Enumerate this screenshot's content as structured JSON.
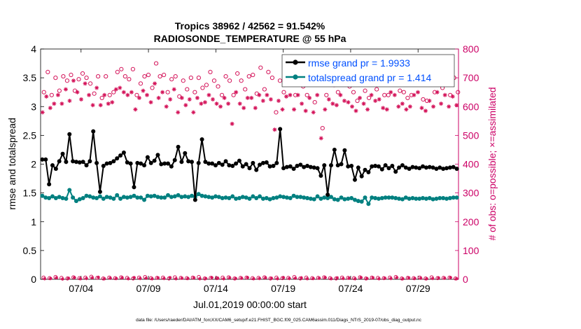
{
  "chart_data": {
    "type": "line",
    "title_line1": "Tropics 38962 / 42562 = 91.542%",
    "title_line2": "RADIOSONDE_TEMPERATURE @ 55 hPa",
    "xlabel": "Jul.01,2019 00:00:00 start",
    "ylabel_left": "rmse and totalspread",
    "ylabel_right": "# of obs: o=possible; ×=assimilated",
    "footer": "data file: /Users/raeder/DAI/ATM_forcXX/CAM6_setup/f.e21.FHIST_BGC.f09_025.CAM6assim.011/Diags_NTrS_2019-07/obs_diag_output.nc",
    "x_range_days": [
      1.0,
      32.0
    ],
    "x_ticks": [
      {
        "day": 4,
        "label": "07/04"
      },
      {
        "day": 9,
        "label": "07/09"
      },
      {
        "day": 14,
        "label": "07/14"
      },
      {
        "day": 19,
        "label": "07/19"
      },
      {
        "day": 24,
        "label": "07/24"
      },
      {
        "day": 29,
        "label": "07/29"
      }
    ],
    "ylim_left": [
      0,
      4
    ],
    "yticks_left": [
      "0",
      "0.5",
      "1",
      "1.5",
      "2",
      "2.5",
      "3",
      "3.5",
      "4"
    ],
    "ylim_right": [
      0,
      800
    ],
    "yticks_right": [
      "0",
      "100",
      "200",
      "300",
      "400",
      "500",
      "600",
      "700",
      "800"
    ],
    "grid": false,
    "legend_position": "top-right",
    "colors": {
      "rmse": "#000000",
      "totalspread": "#008080",
      "obs": "#d4145a",
      "legend_text": "#0050ff",
      "right_axis": "#cc0066"
    },
    "series": [
      {
        "name": "rmse grand pr = 1.9933",
        "values": [
          2.08,
          2.08,
          1.65,
          1.98,
          1.92,
          2.05,
          2.18,
          2.04,
          2.52,
          2.05,
          2.04,
          2.03,
          2.04,
          1.98,
          2.05,
          2.57,
          2.02,
          1.52,
          1.97,
          2.01,
          2.02,
          2.05,
          2.1,
          2.15,
          2.2,
          2.03,
          2.01,
          1.6,
          2.02,
          2.01,
          1.98,
          2.12,
          2.02,
          2.06,
          2.16,
          2.0,
          2.01,
          2.01,
          1.96,
          2.07,
          2.3,
          2.04,
          2.19,
          2.05,
          2.04,
          1.38,
          2.02,
          2.43,
          2.04,
          2.01,
          2.01,
          1.98,
          2.02,
          1.99,
          2.05,
          1.98,
          1.97,
          2.01,
          2.06,
          1.96,
          2.0,
          1.93,
          2.02,
          1.9,
          1.99,
          2.02,
          2.03,
          1.96,
          1.97,
          2.02,
          2.61,
          1.93,
          1.95,
          1.96,
          1.92,
          1.97,
          1.99,
          1.95,
          1.97,
          1.95,
          1.94,
          1.93,
          1.8,
          1.98,
          1.47,
          1.98,
          2.25,
          1.98,
          2.0,
          2.24,
          1.96,
          1.97,
          1.73,
          1.94,
          1.79,
          1.9,
          1.86,
          1.96,
          1.97,
          1.96,
          1.91,
          1.98,
          1.93,
          1.97,
          1.87,
          1.94,
          1.98,
          1.94,
          1.92,
          1.95,
          1.94,
          1.93,
          1.96,
          1.94,
          1.95,
          1.94,
          1.92,
          1.94,
          1.92,
          1.93,
          1.94,
          1.95,
          1.92
        ]
      },
      {
        "name": "totalspread grand pr = 1.414",
        "values": [
          1.45,
          1.42,
          1.41,
          1.44,
          1.41,
          1.43,
          1.41,
          1.4,
          1.55,
          1.42,
          1.36,
          1.39,
          1.41,
          1.45,
          1.44,
          1.42,
          1.41,
          1.44,
          1.4,
          1.43,
          1.42,
          1.4,
          1.46,
          1.4,
          1.43,
          1.42,
          1.43,
          1.45,
          1.42,
          1.42,
          1.38,
          1.45,
          1.44,
          1.45,
          1.43,
          1.42,
          1.42,
          1.46,
          1.43,
          1.44,
          1.46,
          1.43,
          1.44,
          1.43,
          1.45,
          1.43,
          1.48,
          1.45,
          1.44,
          1.43,
          1.42,
          1.44,
          1.43,
          1.41,
          1.42,
          1.41,
          1.44,
          1.4,
          1.41,
          1.43,
          1.42,
          1.4,
          1.44,
          1.41,
          1.44,
          1.4,
          1.41,
          1.39,
          1.41,
          1.42,
          1.44,
          1.43,
          1.42,
          1.41,
          1.45,
          1.43,
          1.43,
          1.42,
          1.41,
          1.4,
          1.39,
          1.44,
          1.4,
          1.42,
          1.41,
          1.43,
          1.39,
          1.38,
          1.42,
          1.39,
          1.4,
          1.41,
          1.38,
          1.36,
          1.35,
          1.42,
          1.31,
          1.42,
          1.41,
          1.4,
          1.41,
          1.42,
          1.42,
          1.42,
          1.41,
          1.4,
          1.39,
          1.42,
          1.4,
          1.41,
          1.4,
          1.4,
          1.41,
          1.4,
          1.41,
          1.39,
          1.4,
          1.41,
          1.41,
          1.4,
          1.41,
          1.42,
          1.42
        ]
      },
      {
        "name": "obs possible",
        "values": [
          650,
          720,
          640,
          700,
          655,
          705,
          690,
          710,
          655,
          695,
          715,
          700,
          680,
          645,
          705,
          630,
          705,
          640,
          650,
          720,
          730,
          705,
          695,
          730,
          640,
          680,
          705,
          710,
          665,
          750,
          705,
          710,
          650,
          695,
          705,
          635,
          690,
          660,
          700,
          650,
          700,
          665,
          675,
          720,
          690,
          670,
          640,
          705,
          690,
          640,
          715,
          690,
          660,
          705,
          710,
          645,
          735,
          660,
          720,
          700,
          580,
          690,
          650,
          700,
          710,
          640,
          710,
          670,
          640,
          690,
          615,
          705,
          525,
          640,
          700,
          675,
          650,
          705,
          690,
          670,
          650,
          620,
          700,
          655,
          630,
          720,
          660,
          700,
          640,
          640,
          720,
          700,
          655,
          650,
          630,
          640,
          700,
          740,
          625,
          620,
          690,
          650,
          745,
          665,
          700,
          640,
          700,
          650
        ]
      },
      {
        "name": "obs assimilated",
        "values": [
          580,
          635,
          595,
          610,
          640,
          610,
          660,
          620,
          690,
          650,
          625,
          680,
          640,
          605,
          665,
          605,
          640,
          610,
          615,
          660,
          665,
          650,
          640,
          650,
          590,
          630,
          655,
          640,
          615,
          680,
          630,
          650,
          600,
          625,
          660,
          580,
          630,
          605,
          625,
          580,
          630,
          610,
          615,
          640,
          625,
          610,
          600,
          630,
          610,
          540,
          650,
          610,
          595,
          630,
          630,
          595,
          640,
          620,
          640,
          625,
          520,
          620,
          590,
          635,
          640,
          590,
          640,
          610,
          585,
          630,
          580,
          640,
          490,
          590,
          625,
          610,
          605,
          640,
          620,
          615,
          600,
          585,
          630,
          610,
          590,
          640,
          620,
          625,
          595,
          590,
          650,
          640,
          600,
          610,
          590,
          600,
          640,
          650,
          595,
          585,
          620,
          600,
          650,
          610,
          640,
          600,
          635,
          605
        ]
      },
      {
        "name": "obs near zero possible",
        "values": [
          6,
          4,
          8,
          5,
          3,
          7,
          4,
          6,
          9,
          5,
          3,
          6,
          4,
          7,
          5,
          3,
          6,
          8,
          4,
          5,
          6,
          3,
          7,
          5,
          4,
          6,
          8,
          3,
          5,
          4,
          6,
          7,
          3,
          5,
          6,
          4,
          5,
          7,
          3,
          6,
          4,
          5,
          8,
          3,
          6,
          4,
          5,
          7,
          4,
          3,
          6,
          5,
          4,
          7,
          3,
          6,
          5,
          4,
          6,
          8,
          3,
          5,
          4,
          6,
          3,
          7,
          4,
          5,
          6,
          3
        ]
      },
      {
        "name": "obs near zero assimilated",
        "values": [
          2,
          3,
          5,
          1,
          4,
          6,
          2,
          3,
          5,
          7,
          2,
          4,
          3,
          5,
          2,
          6,
          3,
          4,
          2,
          5,
          3,
          6,
          2,
          4,
          3,
          5,
          2,
          3,
          6,
          4,
          2,
          5,
          3,
          4,
          6,
          2,
          3,
          5,
          4,
          2,
          6,
          3,
          4,
          5,
          2,
          3,
          4,
          6,
          2,
          5,
          3,
          4,
          2,
          6,
          3,
          5,
          2,
          4,
          3,
          6,
          2,
          5,
          3,
          4,
          2,
          3,
          5,
          4,
          6,
          2
        ]
      }
    ]
  }
}
